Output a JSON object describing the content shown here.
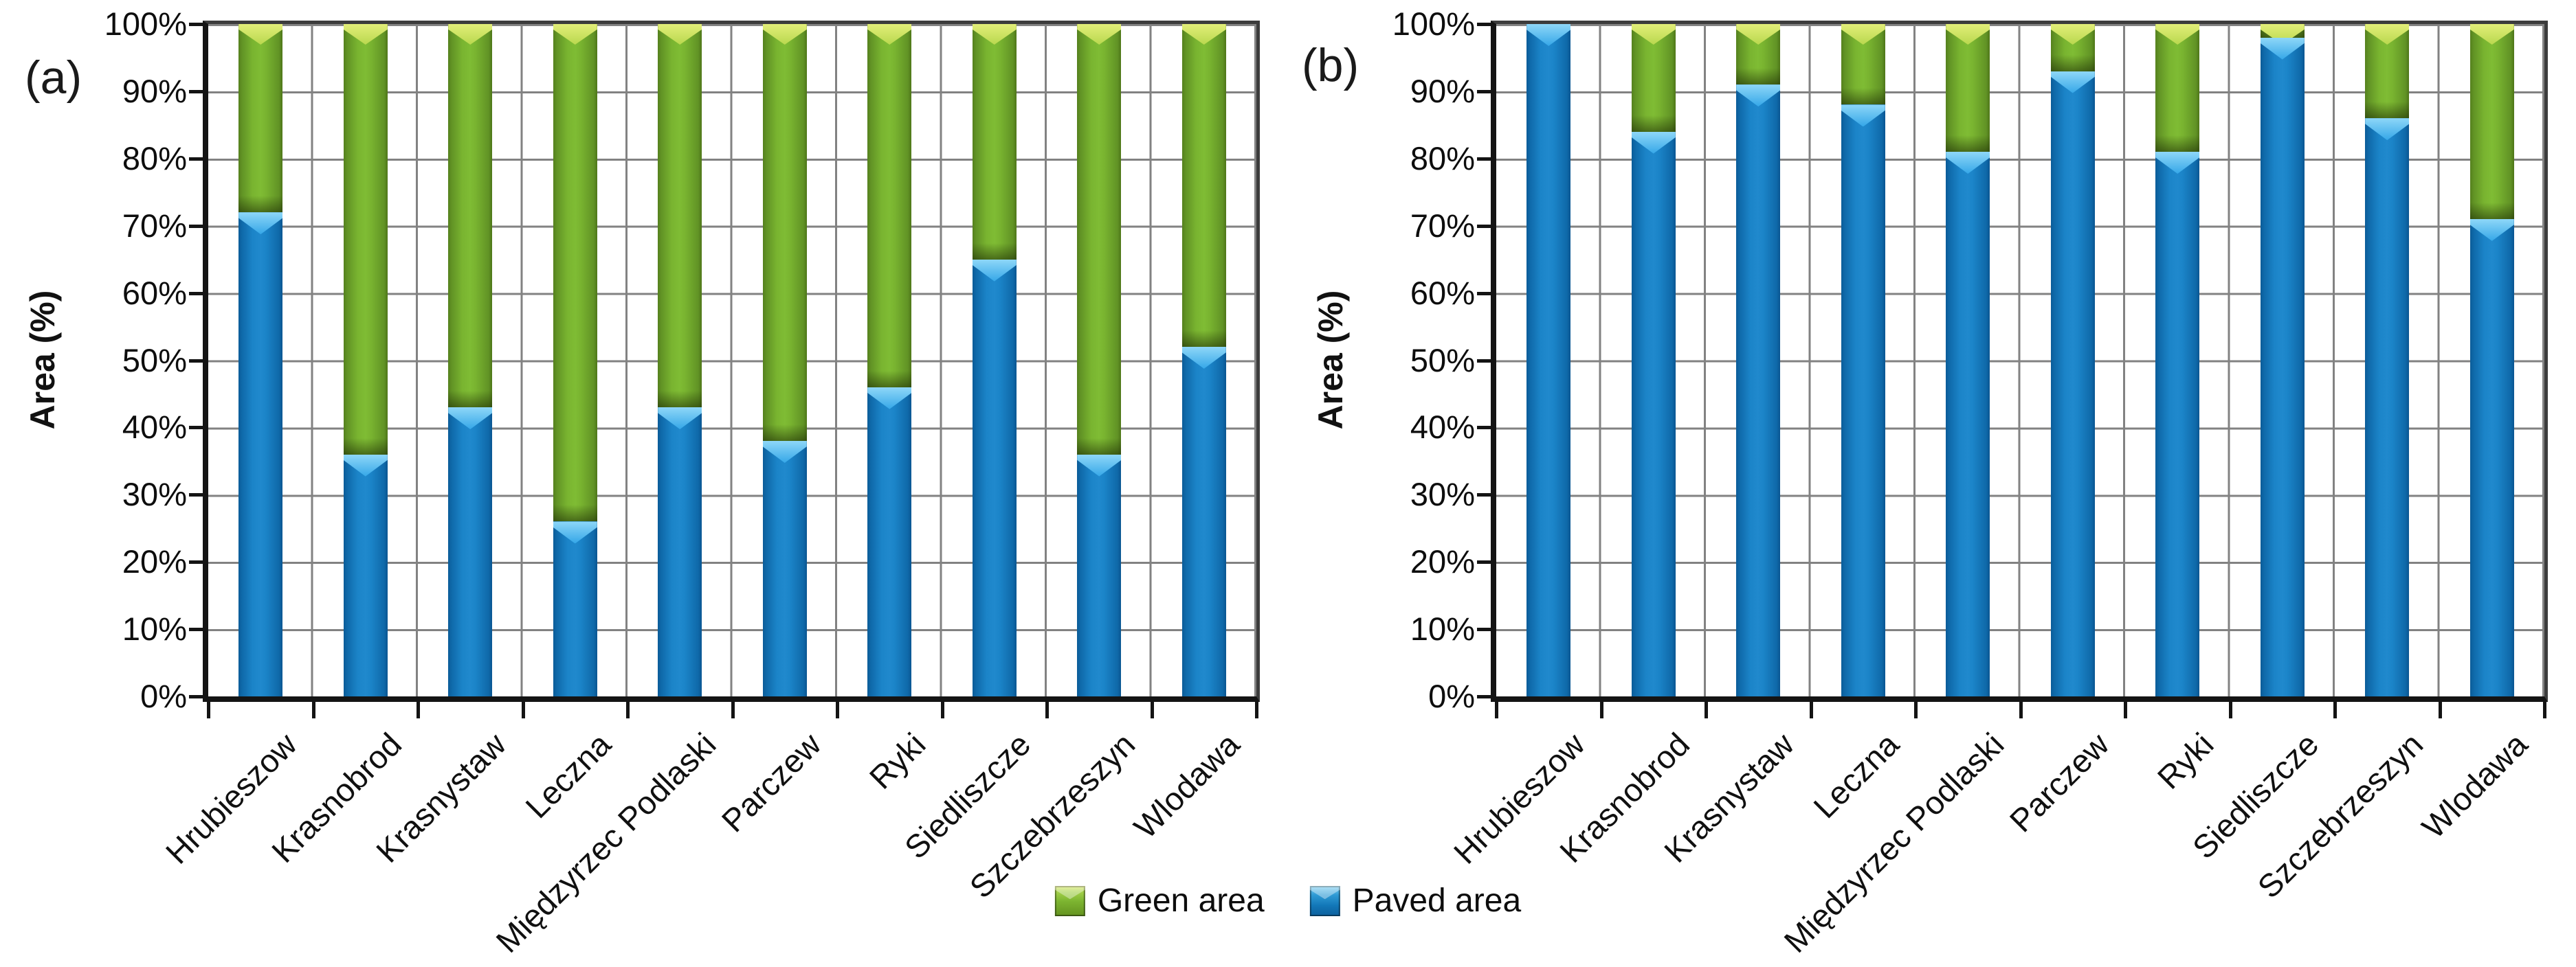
{
  "figure": {
    "y_ticks": [
      "0%",
      "10%",
      "20%",
      "30%",
      "40%",
      "50%",
      "60%",
      "70%",
      "80%",
      "90%",
      "100%"
    ],
    "legend": [
      {
        "key": "green",
        "label": "Green area",
        "color": "#76b72c"
      },
      {
        "key": "paved",
        "label": "Paved area",
        "color": "#1379bf"
      }
    ],
    "colors": {
      "green_bar": "#76b72c",
      "paved_bar": "#1379bf",
      "gridline": "#828282",
      "axis": "#141414"
    }
  },
  "chart_data": [
    {
      "type": "bar",
      "stacked": true,
      "panel_label": "(a)",
      "ylabel": "Area (%)",
      "ylim": [
        0,
        100
      ],
      "grid": true,
      "legend_position": "bottom-center",
      "categories": [
        "Hrubieszow",
        "Krasnobrod",
        "Krasnystaw",
        "Leczna",
        "Międzyrzec Podlaski",
        "Parczew",
        "Ryki",
        "Siedliszcze",
        "Szczebrzeszyn",
        "Wlodawa"
      ],
      "series": [
        {
          "name": "Green area",
          "values": [
            28,
            64,
            57,
            74,
            57,
            62,
            54,
            35,
            64,
            48
          ]
        },
        {
          "name": "Paved area",
          "values": [
            72,
            36,
            43,
            26,
            43,
            38,
            46,
            65,
            36,
            52
          ]
        }
      ]
    },
    {
      "type": "bar",
      "stacked": true,
      "panel_label": "(b)",
      "ylabel": "Area (%)",
      "ylim": [
        0,
        100
      ],
      "grid": true,
      "legend_position": "bottom-center",
      "categories": [
        "Hrubieszow",
        "Krasnobrod",
        "Krasnystaw",
        "Leczna",
        "Międzyrzec Podlaski",
        "Parczew",
        "Ryki",
        "Siedliszcze",
        "Szczebrzeszyn",
        "Wlodawa"
      ],
      "series": [
        {
          "name": "Green area",
          "values": [
            0,
            16,
            9,
            12,
            19,
            7,
            19,
            2,
            14,
            29
          ]
        },
        {
          "name": "Paved area",
          "values": [
            100,
            84,
            91,
            88,
            81,
            93,
            81,
            98,
            86,
            71
          ]
        }
      ]
    }
  ]
}
